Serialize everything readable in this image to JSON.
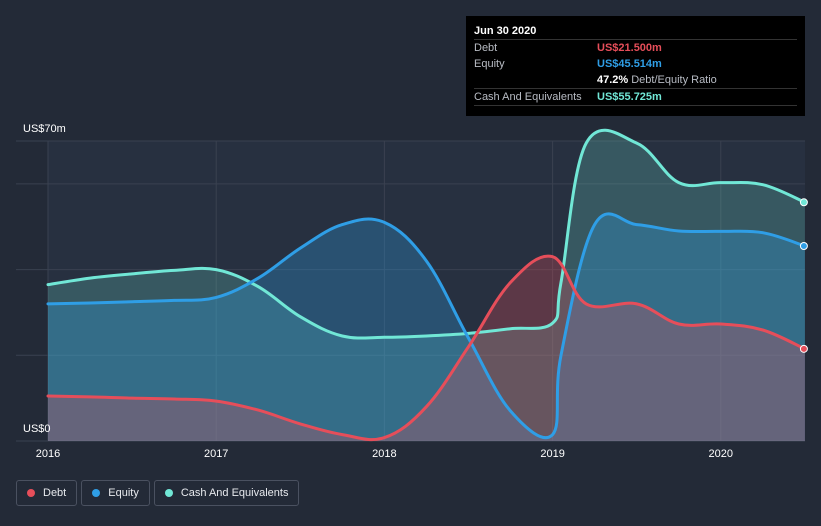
{
  "tooltip": {
    "date": "Jun 30 2020",
    "debt_label": "Debt",
    "debt_value": "US$21.500m",
    "equity_label": "Equity",
    "equity_value": "US$45.514m",
    "ratio_value": "47.2%",
    "ratio_label": "Debt/Equity Ratio",
    "cash_label": "Cash And Equivalents",
    "cash_value": "US$55.725m"
  },
  "legend": {
    "debt": "Debt",
    "equity": "Equity",
    "cash": "Cash And Equivalents"
  },
  "colors": {
    "background": "#232a37",
    "debt": "#e64e5a",
    "equity": "#2f9ee6",
    "cash": "#71e7d6",
    "grid": "#3a4150"
  },
  "chart_data": {
    "type": "area",
    "ylabel_top": "US$70m",
    "ylabel_bottom": "US$0",
    "ylim": [
      0,
      70
    ],
    "x_ticks": [
      "2016",
      "2017",
      "2018",
      "2019",
      "2020"
    ],
    "grid": true,
    "legend_position": "bottom-left",
    "series": [
      {
        "name": "Cash And Equivalents",
        "x": [
          2016.0,
          2016.25,
          2016.5,
          2016.75,
          2017.0,
          2017.25,
          2017.5,
          2017.75,
          2018.0,
          2018.25,
          2018.5,
          2018.75,
          2019.0,
          2019.05,
          2019.2,
          2019.5,
          2019.75,
          2020.0,
          2020.25,
          2020.5
        ],
        "y": [
          36.5,
          38,
          39,
          39.8,
          40,
          36,
          29,
          24.5,
          24.2,
          24.5,
          25.1,
          26.2,
          27.5,
          37,
          69.5,
          69.5,
          60.3,
          60.3,
          59.8,
          55.7
        ]
      },
      {
        "name": "Equity",
        "x": [
          2016.0,
          2016.25,
          2016.5,
          2016.75,
          2017.0,
          2017.25,
          2017.5,
          2017.75,
          2018.0,
          2018.25,
          2018.5,
          2018.75,
          2019.0,
          2019.05,
          2019.25,
          2019.5,
          2019.75,
          2020.0,
          2020.25,
          2020.5
        ],
        "y": [
          32,
          32.2,
          32.5,
          32.8,
          33.5,
          38,
          45,
          50.5,
          51,
          42,
          24,
          7,
          1.5,
          20,
          50.5,
          50.5,
          49,
          48.9,
          48.6,
          45.5
        ]
      },
      {
        "name": "Debt",
        "x": [
          2016.0,
          2016.25,
          2016.5,
          2016.75,
          2017.0,
          2017.25,
          2017.5,
          2017.75,
          2018.0,
          2018.25,
          2018.5,
          2018.75,
          2019.0,
          2019.2,
          2019.5,
          2019.75,
          2020.0,
          2020.25,
          2020.5
        ],
        "y": [
          10.5,
          10.3,
          10,
          9.8,
          9.3,
          7.2,
          4,
          1.5,
          0.8,
          8,
          22,
          37,
          43,
          32,
          32,
          27.3,
          27.3,
          25.9,
          21.5
        ]
      }
    ]
  }
}
